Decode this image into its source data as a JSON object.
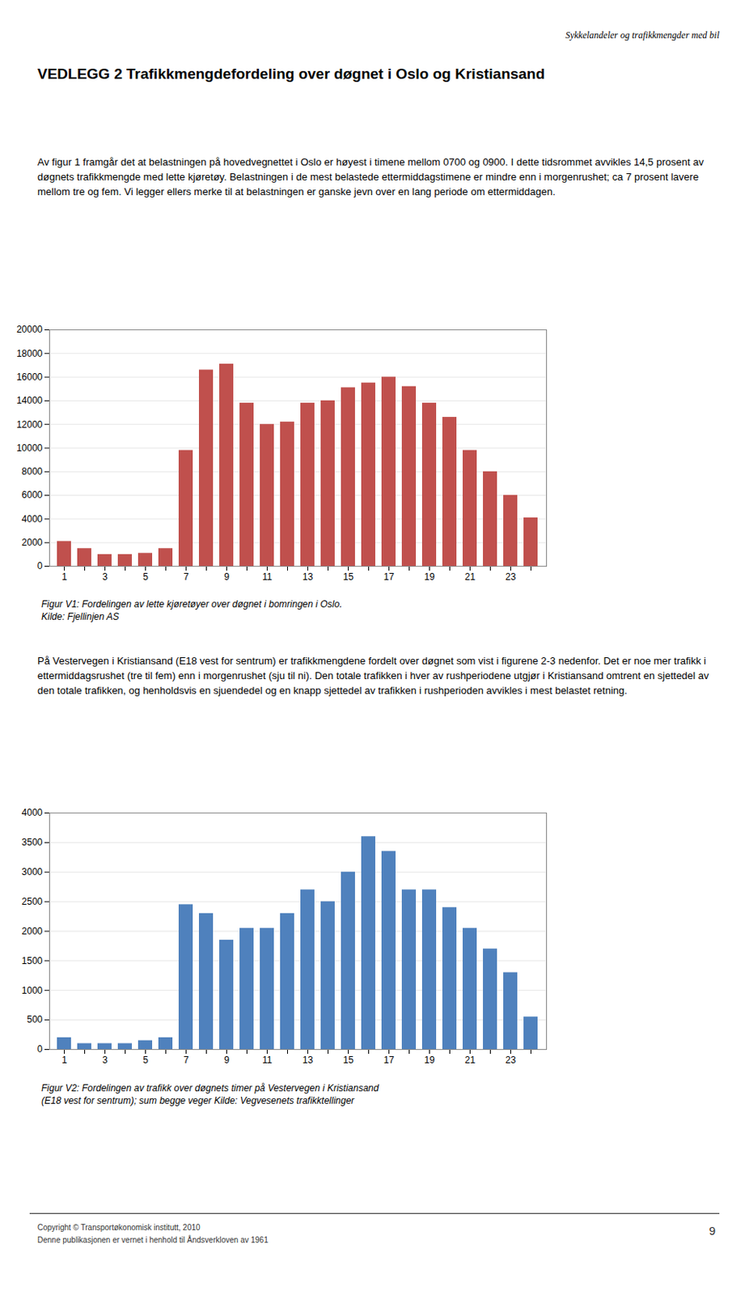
{
  "header": "Sykkelandeler og trafikkmengder med bil",
  "title": "VEDLEGG 2 Trafikkmengdefordeling over døgnet i Oslo og Kristiansand",
  "paragraphs": [
    "Av figur 1 framgår det at belastningen på hovedvegnettet i Oslo er høyest i timene mellom 0700 og 0900. I dette tidsrommet avvikles 14,5 prosent av døgnets trafikkmengde med lette kjøretøy. Belastningen i de mest belastede ettermiddagstimene er mindre enn i morgenrushet; ca 7 prosent lavere mellom tre og fem. Vi legger ellers merke til at belastningen er ganske jevn over en lang periode om ettermiddagen.",
    "På Vestervegen i Kristiansand (E18 vest for sentrum) er trafikkmengdene fordelt over døgnet som vist i figurene 2-3 nedenfor. Det er noe mer trafikk i ettermiddagsrushet (tre til fem) enn i morgenrushet (sju til ni). Den totale trafikken i hver av rushperiodene utgjør i Kristiansand omtrent en sjettedel av den totale trafikken, og henholdsvis en sjuendedel og en knapp sjettedel av trafikken i rushperioden avvikles i mest belastet retning."
  ],
  "chart_data": [
    {
      "type": "bar",
      "categories": [
        1,
        null,
        3,
        null,
        5,
        null,
        7,
        null,
        9,
        null,
        11,
        null,
        13,
        null,
        15,
        null,
        17,
        null,
        19,
        null,
        21,
        null,
        23,
        null
      ],
      "values": [
        2100,
        1500,
        1000,
        1000,
        1100,
        1500,
        9800,
        16600,
        17100,
        13800,
        12000,
        12200,
        13800,
        14000,
        15100,
        15500,
        16000,
        15200,
        13800,
        12600,
        9800,
        8000,
        6000,
        4100
      ],
      "color": "#c0504d",
      "ylim": [
        0,
        20000
      ],
      "yticks": [
        0,
        2000,
        4000,
        6000,
        8000,
        10000,
        12000,
        14000,
        16000,
        18000,
        20000
      ],
      "grid": true,
      "caption": [
        "Figur V1: Fordelingen av lette kjøretøyer over døgnet i bomringen i Oslo.",
        "Kilde: Fjellinjen AS"
      ]
    },
    {
      "type": "bar",
      "categories": [
        1,
        null,
        3,
        null,
        5,
        null,
        7,
        null,
        9,
        null,
        11,
        null,
        13,
        null,
        15,
        null,
        17,
        null,
        19,
        null,
        21,
        null,
        23,
        null
      ],
      "values": [
        200,
        100,
        100,
        100,
        150,
        200,
        2450,
        2300,
        1850,
        2050,
        2050,
        2300,
        2700,
        2500,
        3000,
        3600,
        3350,
        2700,
        2700,
        2400,
        2050,
        1700,
        1300,
        550
      ],
      "color": "#4f81bd",
      "ylim": [
        0,
        4000
      ],
      "yticks": [
        0,
        500,
        1000,
        1500,
        2000,
        2500,
        3000,
        3500,
        4000
      ],
      "grid": true,
      "caption": [
        "Figur V2: Fordelingen av trafikk over døgnets timer på Vestervegen i Kristiansand",
        "(E18 vest for sentrum); sum begge veger Kilde: Vegvesenets trafikktellinger"
      ]
    }
  ],
  "footer": [
    "Copyright © Transportøkonomisk institutt, 2010",
    "Denne publikasjonen er vernet i henhold til Åndsverkloven av 1961"
  ],
  "page_number": "9"
}
